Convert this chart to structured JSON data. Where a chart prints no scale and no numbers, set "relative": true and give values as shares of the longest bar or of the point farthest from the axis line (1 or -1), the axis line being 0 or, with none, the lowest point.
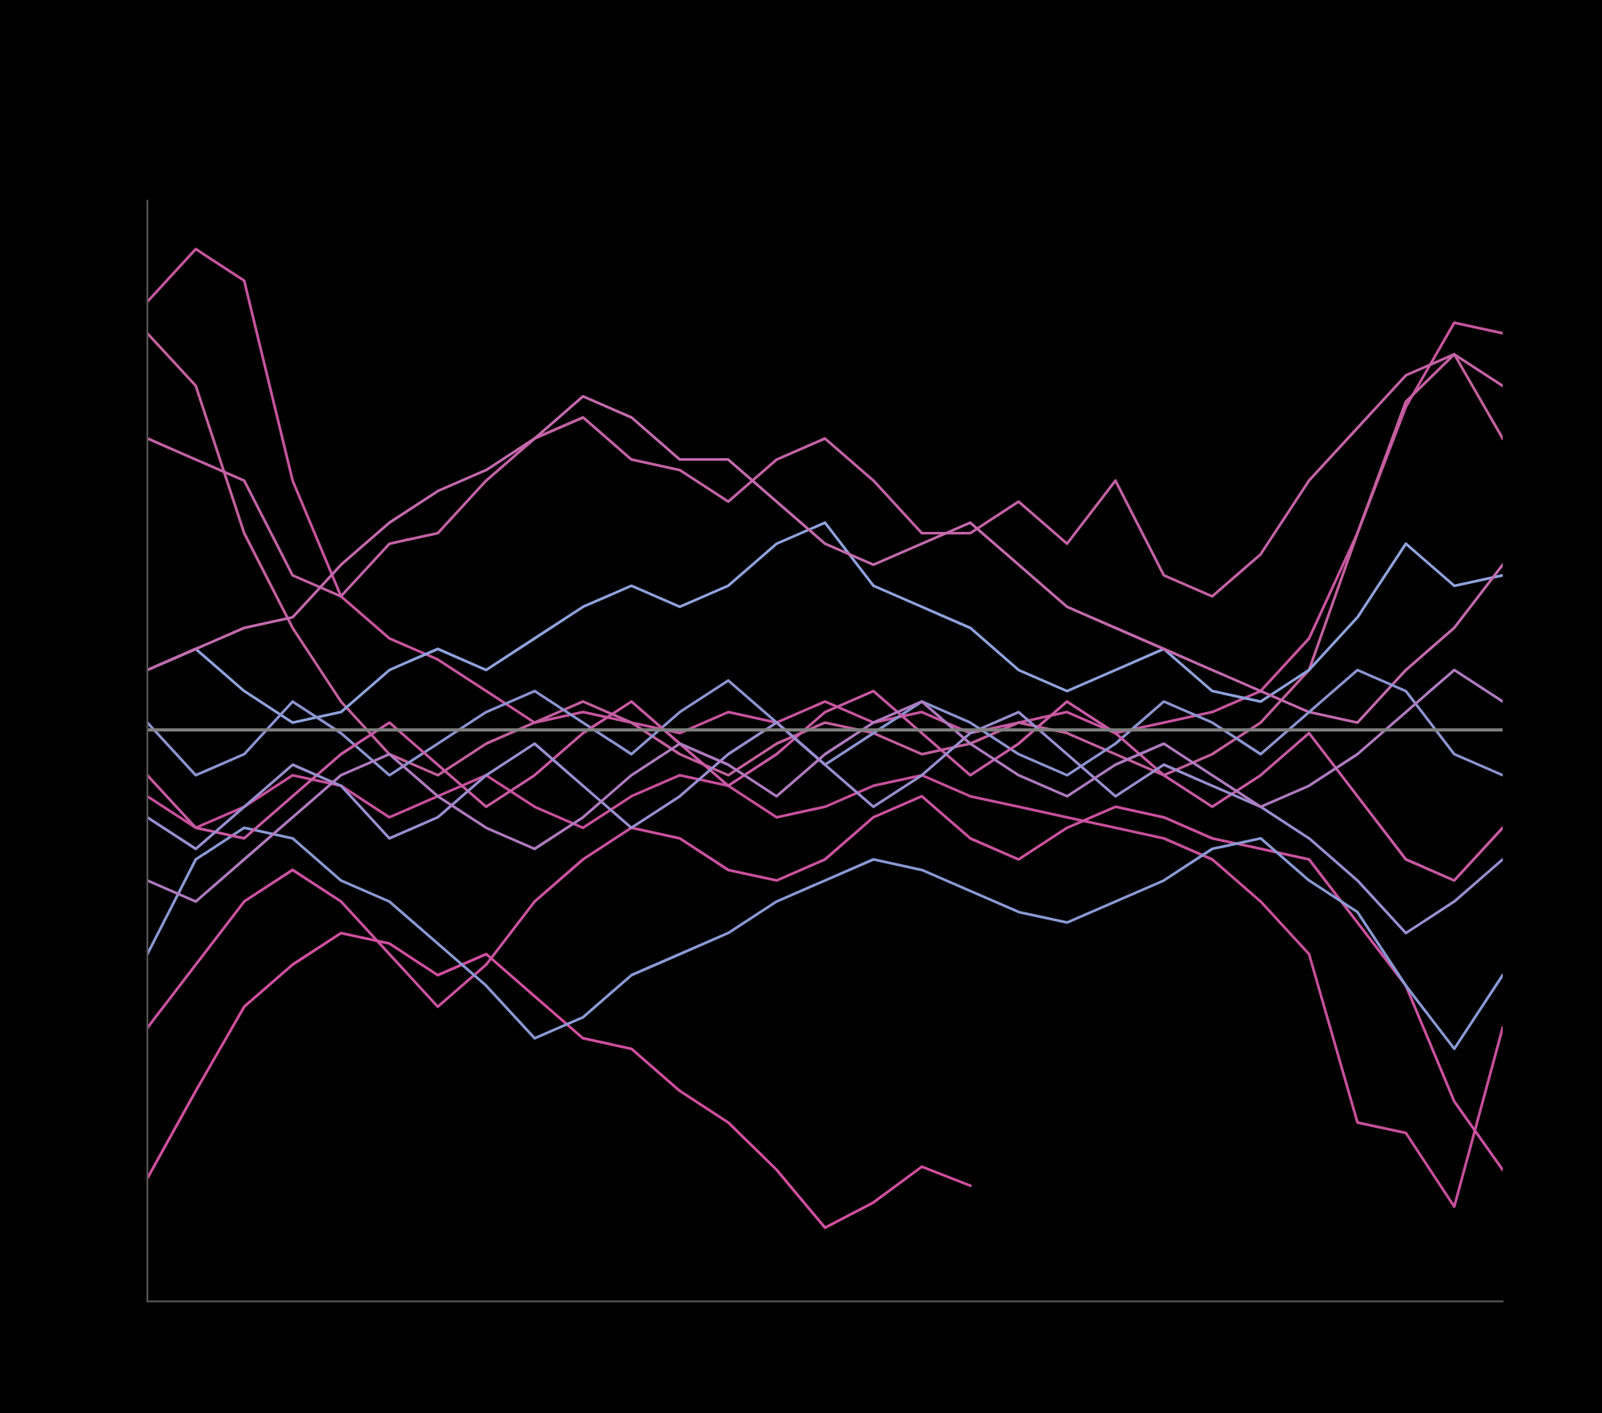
{
  "chart_data": {
    "type": "line",
    "relative": true,
    "marker": "none",
    "line_style": "solid",
    "categories": [
      null,
      null,
      null,
      null,
      null,
      null,
      null,
      null,
      null,
      null,
      null,
      null,
      null,
      null,
      null,
      null,
      null,
      null,
      null,
      null,
      null,
      null,
      null,
      null,
      null,
      null,
      null,
      null,
      null
    ],
    "ref_lines": [
      {
        "axis": "y",
        "value": 0.543,
        "color": "#808080"
      }
    ],
    "series": [
      {
        "color": "#d24fa0",
        "values": [
          0.117,
          0.2,
          0.28,
          0.32,
          0.35,
          0.34,
          0.31,
          0.33,
          0.29,
          0.25,
          0.24,
          0.2,
          0.17,
          0.125,
          0.07,
          0.094,
          0.128,
          0.11,
          null,
          null,
          null,
          null,
          null,
          null,
          null,
          null,
          null,
          null,
          null
        ]
      },
      {
        "color": "#c8559f",
        "values": [
          0.95,
          1.0,
          0.97,
          0.78,
          0.67,
          0.63,
          0.61,
          0.58,
          0.55,
          0.56,
          0.55,
          0.54,
          0.56,
          0.55,
          0.57,
          0.55,
          0.56,
          0.54,
          0.55,
          0.56,
          0.54,
          0.55,
          0.56,
          0.58,
          0.63,
          0.73,
          0.85,
          0.93,
          0.92
        ]
      },
      {
        "color": "#c4609f",
        "values": [
          0.92,
          0.87,
          0.73,
          0.64,
          0.57,
          0.52,
          0.5,
          0.53,
          0.55,
          0.57,
          0.55,
          0.52,
          0.5,
          0.53,
          0.55,
          0.54,
          0.52,
          0.53,
          0.55,
          0.54,
          0.52,
          0.5,
          0.52,
          0.55,
          0.6,
          0.73,
          0.855,
          0.9,
          0.82
        ]
      },
      {
        "color": "#c462a6",
        "values": [
          0.82,
          0.8,
          0.78,
          0.69,
          0.67,
          0.72,
          0.73,
          0.78,
          0.82,
          0.84,
          0.8,
          0.79,
          0.76,
          0.8,
          0.82,
          0.78,
          0.73,
          0.73,
          0.76,
          0.72,
          0.78,
          0.69,
          0.67,
          0.71,
          0.78,
          0.83,
          0.88,
          0.9,
          0.87
        ]
      },
      {
        "color": "#c8509c",
        "values": [
          0.48,
          0.45,
          0.47,
          0.5,
          0.49,
          0.46,
          0.48,
          0.5,
          0.47,
          0.45,
          0.48,
          0.5,
          0.49,
          0.46,
          0.47,
          0.49,
          0.5,
          0.48,
          0.47,
          0.46,
          0.45,
          0.44,
          0.42,
          0.38,
          0.33,
          0.17,
          0.16,
          0.09,
          0.26
        ]
      },
      {
        "color": "#cc52a0",
        "values": [
          0.26,
          0.32,
          0.38,
          0.41,
          0.38,
          0.33,
          0.28,
          0.32,
          0.38,
          0.42,
          0.45,
          0.44,
          0.41,
          0.4,
          0.42,
          0.46,
          0.48,
          0.44,
          0.42,
          0.45,
          0.47,
          0.46,
          0.44,
          0.43,
          0.42,
          0.36,
          0.3,
          0.19,
          0.125
        ]
      },
      {
        "color": "#8a9ad4",
        "values": [
          0.33,
          0.42,
          0.45,
          0.44,
          0.4,
          0.38,
          0.34,
          0.3,
          0.25,
          0.27,
          0.31,
          0.33,
          0.35,
          0.38,
          0.4,
          0.42,
          0.41,
          0.39,
          0.37,
          0.36,
          0.38,
          0.4,
          0.43,
          0.44,
          0.4,
          0.37,
          0.3,
          0.24,
          0.31
        ]
      },
      {
        "color": "#8fa3dc",
        "values": [
          0.6,
          0.62,
          0.58,
          0.55,
          0.56,
          0.6,
          0.62,
          0.6,
          0.63,
          0.66,
          0.68,
          0.66,
          0.68,
          0.72,
          0.74,
          0.68,
          0.66,
          0.64,
          0.6,
          0.58,
          0.6,
          0.62,
          0.58,
          0.57,
          0.6,
          0.65,
          0.72,
          0.68,
          0.69
        ]
      },
      {
        "color": "#c46aae",
        "values": [
          0.6,
          0.62,
          0.64,
          0.65,
          0.7,
          0.74,
          0.77,
          0.79,
          0.82,
          0.86,
          0.84,
          0.8,
          0.8,
          0.76,
          0.72,
          0.7,
          0.72,
          0.74,
          0.7,
          0.66,
          0.64,
          0.62,
          0.6,
          0.58,
          0.56,
          0.55,
          0.6,
          0.64,
          0.7
        ]
      },
      {
        "color": "#8c95d0",
        "values": [
          0.55,
          0.5,
          0.52,
          0.57,
          0.54,
          0.5,
          0.53,
          0.56,
          0.58,
          0.55,
          0.52,
          0.56,
          0.59,
          0.55,
          0.51,
          0.54,
          0.57,
          0.55,
          0.52,
          0.5,
          0.53,
          0.57,
          0.55,
          0.52,
          0.56,
          0.6,
          0.58,
          0.52,
          0.5
        ]
      },
      {
        "color": "#c95aa4",
        "values": [
          0.5,
          0.45,
          0.44,
          0.48,
          0.52,
          0.55,
          0.51,
          0.47,
          0.5,
          0.54,
          0.57,
          0.53,
          0.49,
          0.52,
          0.56,
          0.58,
          0.54,
          0.5,
          0.53,
          0.57,
          0.54,
          0.5,
          0.47,
          0.5,
          0.54,
          0.48,
          0.42,
          0.4,
          0.45
        ]
      },
      {
        "color": "#9a8fd0",
        "values": [
          0.46,
          0.43,
          0.47,
          0.51,
          0.49,
          0.44,
          0.46,
          0.5,
          0.53,
          0.49,
          0.45,
          0.48,
          0.52,
          0.55,
          0.51,
          0.47,
          0.5,
          0.54,
          0.56,
          0.52,
          0.48,
          0.51,
          0.49,
          0.47,
          0.44,
          0.4,
          0.35,
          0.38,
          0.42
        ]
      },
      {
        "color": "#b07bc0",
        "values": [
          0.4,
          0.38,
          0.42,
          0.46,
          0.5,
          0.52,
          0.48,
          0.45,
          0.43,
          0.46,
          0.5,
          0.53,
          0.51,
          0.48,
          0.52,
          0.55,
          0.57,
          0.53,
          0.5,
          0.48,
          0.51,
          0.53,
          0.5,
          0.47,
          0.49,
          0.52,
          0.56,
          0.6,
          0.57
        ]
      }
    ]
  }
}
